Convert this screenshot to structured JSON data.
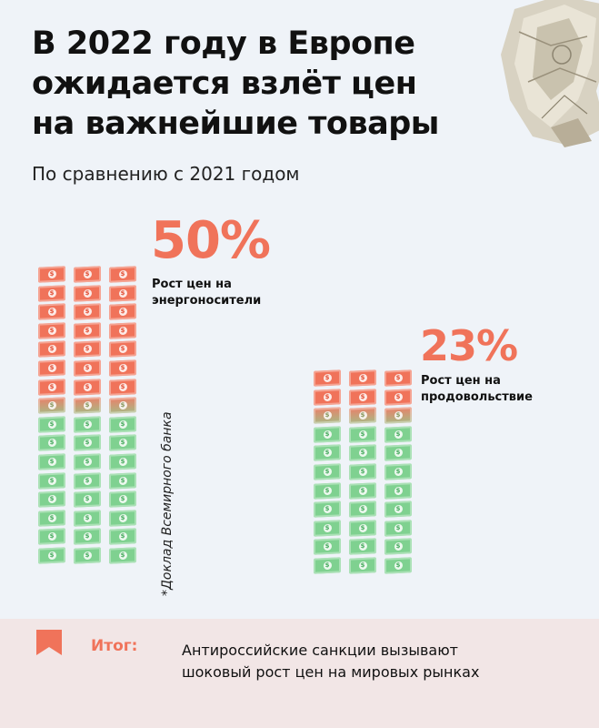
{
  "header": {
    "title_lines": [
      "В 2022 году в Европе",
      "ожидается взлёт цен",
      "на важнейшие товары"
    ],
    "subtitle": "По сравнению с 2021 годом"
  },
  "colors": {
    "accent": "#f0735a",
    "growth_bill": "#f0735a",
    "base_bill": "#7fd190",
    "footer_bg": "#f2e6e6",
    "page_bg": "#eff3f8"
  },
  "blocks": [
    {
      "percent": "50%",
      "caption_lines": [
        "Рост цен на",
        "энергоносители"
      ],
      "red_rows": 7,
      "mixed_rows": 1,
      "green_rows": 8
    },
    {
      "percent": "23%",
      "caption_lines": [
        "Рост цен на",
        "продовольствие"
      ],
      "red_rows": 2,
      "mixed_rows": 1,
      "green_rows": 8
    }
  ],
  "source_note": "*Доклад Всемирного банка",
  "footer": {
    "icon": "bookmark-icon",
    "label": "Итог:",
    "text_lines": [
      "Антироссийские санкции вызывают",
      "шоковый рост цен на мировых рынках"
    ]
  }
}
